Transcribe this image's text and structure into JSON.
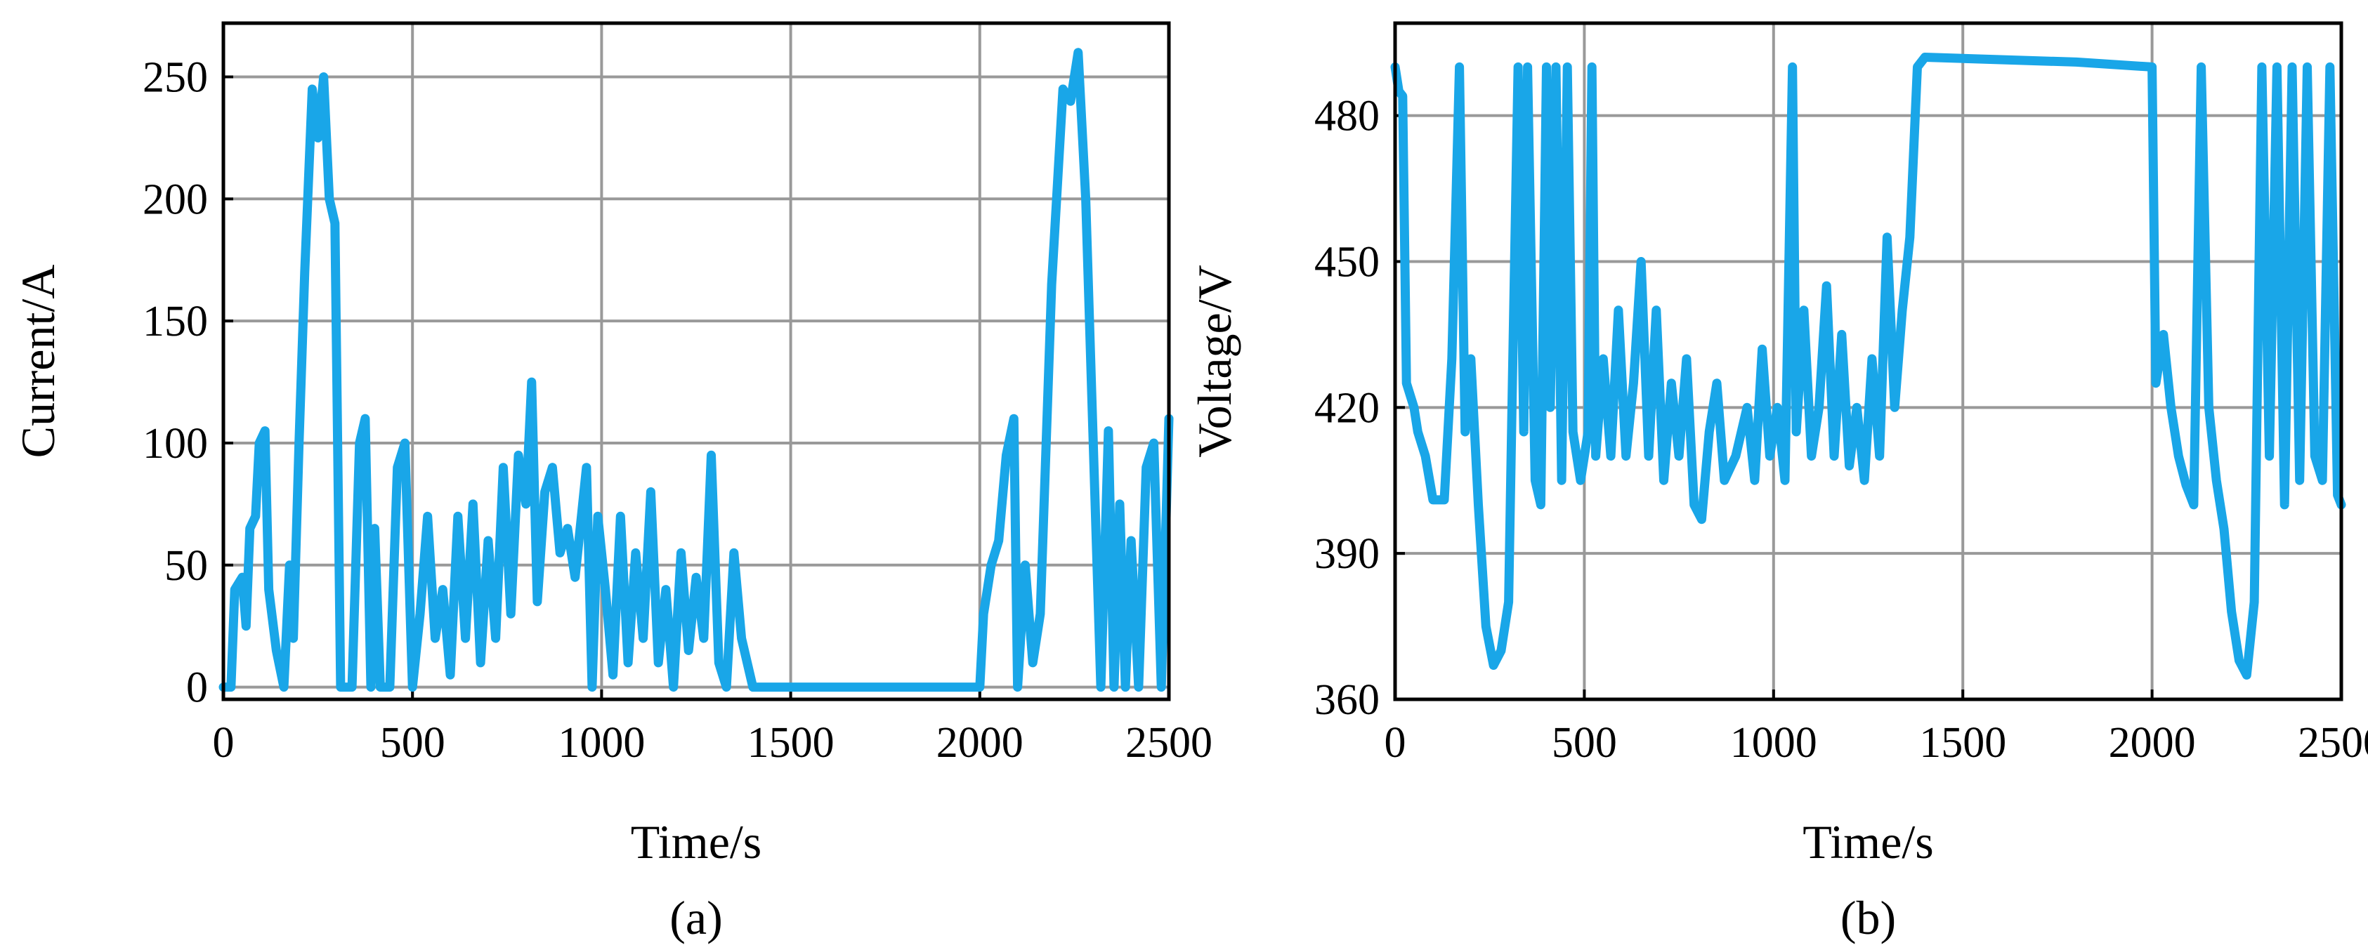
{
  "chart_data": [
    {
      "type": "line",
      "xlabel": "Time/s",
      "ylabel": "Current/A",
      "caption": "(a)",
      "color": "#19a6e8",
      "xlim": [
        0,
        2500
      ],
      "xticks": [
        0,
        500,
        1000,
        1500,
        2000,
        2500
      ],
      "ylim": [
        -5,
        272
      ],
      "yticks": [
        0,
        50,
        100,
        150,
        200,
        250
      ],
      "grid": true,
      "x": [
        0,
        20,
        30,
        50,
        60,
        70,
        85,
        95,
        110,
        120,
        140,
        160,
        175,
        185,
        200,
        215,
        235,
        250,
        265,
        280,
        295,
        310,
        340,
        360,
        375,
        390,
        400,
        415,
        440,
        460,
        480,
        500,
        520,
        540,
        560,
        580,
        600,
        620,
        640,
        660,
        680,
        700,
        720,
        740,
        760,
        780,
        800,
        815,
        830,
        850,
        870,
        890,
        910,
        930,
        960,
        975,
        990,
        1010,
        1030,
        1050,
        1070,
        1090,
        1110,
        1130,
        1150,
        1170,
        1190,
        1210,
        1230,
        1250,
        1270,
        1290,
        1310,
        1330,
        1350,
        1370,
        1400,
        2000,
        2010,
        2030,
        2050,
        2070,
        2090,
        2100,
        2120,
        2140,
        2160,
        2190,
        2220,
        2240,
        2260,
        2280,
        2300,
        2320,
        2340,
        2355,
        2370,
        2385,
        2400,
        2420,
        2440,
        2460,
        2480,
        2500
      ],
      "values": [
        0,
        0,
        40,
        45,
        25,
        65,
        70,
        100,
        105,
        40,
        15,
        0,
        50,
        20,
        100,
        170,
        245,
        225,
        250,
        200,
        190,
        0,
        0,
        100,
        110,
        0,
        65,
        0,
        0,
        90,
        100,
        0,
        30,
        70,
        20,
        40,
        5,
        70,
        20,
        75,
        10,
        60,
        20,
        90,
        30,
        95,
        75,
        125,
        35,
        80,
        90,
        55,
        65,
        45,
        90,
        0,
        70,
        40,
        5,
        70,
        10,
        55,
        20,
        80,
        10,
        40,
        0,
        55,
        15,
        45,
        20,
        95,
        10,
        0,
        55,
        20,
        0,
        0,
        30,
        50,
        60,
        95,
        110,
        0,
        50,
        10,
        30,
        165,
        245,
        240,
        260,
        200,
        100,
        0,
        105,
        0,
        75,
        0,
        60,
        0,
        90,
        100,
        0,
        110
      ]
    },
    {
      "type": "line",
      "xlabel": "Time/s",
      "ylabel": "Voltage/V",
      "caption": "(b)",
      "color": "#19a6e8",
      "xlim": [
        0,
        2500
      ],
      "xticks": [
        0,
        500,
        1000,
        1500,
        2000,
        2500
      ],
      "ylim": [
        360,
        499
      ],
      "yticks": [
        360,
        390,
        420,
        450,
        480
      ],
      "grid": true,
      "x": [
        0,
        10,
        20,
        30,
        50,
        60,
        80,
        100,
        130,
        150,
        170,
        185,
        200,
        220,
        240,
        260,
        280,
        300,
        310,
        325,
        340,
        350,
        370,
        385,
        400,
        410,
        425,
        440,
        455,
        470,
        490,
        510,
        520,
        530,
        550,
        570,
        590,
        610,
        630,
        650,
        670,
        690,
        710,
        730,
        750,
        770,
        790,
        810,
        830,
        850,
        870,
        900,
        930,
        950,
        970,
        990,
        1010,
        1030,
        1050,
        1060,
        1080,
        1100,
        1120,
        1140,
        1160,
        1180,
        1200,
        1220,
        1240,
        1260,
        1280,
        1300,
        1320,
        1340,
        1360,
        1380,
        1400,
        1800,
        2000,
        2010,
        2030,
        2050,
        2070,
        2090,
        2110,
        2130,
        2150,
        2170,
        2190,
        2210,
        2230,
        2250,
        2270,
        2290,
        2310,
        2330,
        2350,
        2370,
        2390,
        2410,
        2430,
        2450,
        2470,
        2490,
        2500
      ],
      "values": [
        490,
        485,
        484,
        425,
        420,
        415,
        410,
        401,
        401,
        430,
        490,
        415,
        430,
        400,
        375,
        367,
        370,
        380,
        425,
        490,
        415,
        490,
        405,
        400,
        490,
        420,
        490,
        405,
        490,
        415,
        405,
        415,
        490,
        410,
        430,
        410,
        440,
        410,
        425,
        450,
        410,
        440,
        405,
        425,
        410,
        430,
        400,
        397,
        415,
        425,
        405,
        410,
        420,
        405,
        432,
        410,
        420,
        405,
        490,
        415,
        440,
        410,
        420,
        445,
        410,
        435,
        408,
        420,
        405,
        430,
        410,
        455,
        420,
        440,
        455,
        490,
        492,
        491,
        490,
        425,
        435,
        420,
        410,
        404,
        400,
        490,
        420,
        405,
        395,
        378,
        368,
        365,
        380,
        490,
        410,
        490,
        400,
        490,
        405,
        490,
        410,
        405,
        490,
        402,
        400
      ]
    }
  ]
}
